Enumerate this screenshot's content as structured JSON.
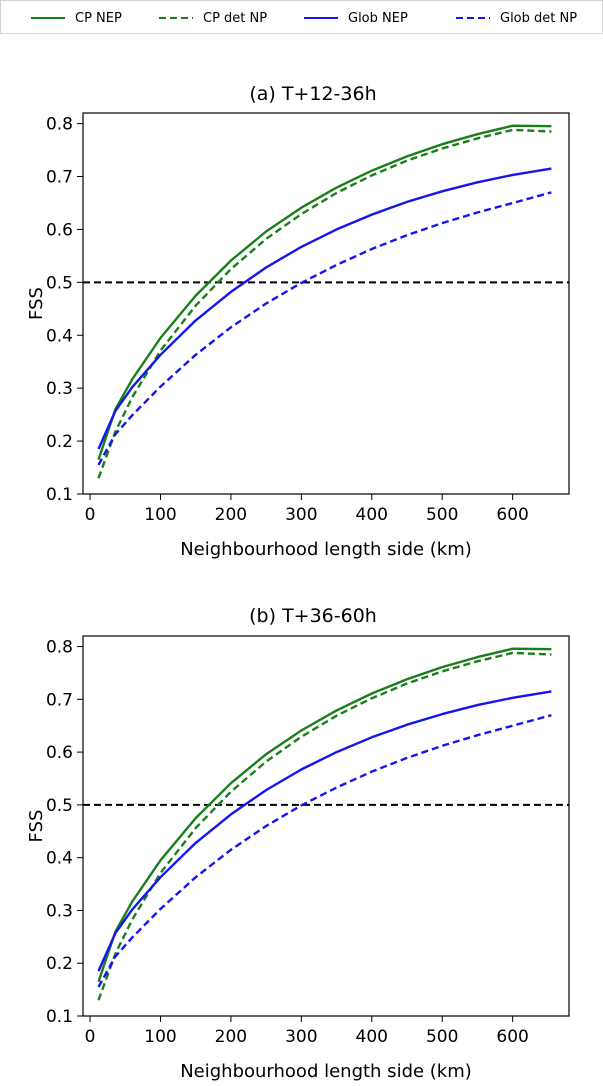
{
  "legend": {
    "entries": [
      {
        "label": "CP NEP",
        "color": "#1a7f1a",
        "dash": "solid"
      },
      {
        "label": "CP det NP",
        "color": "#1a7f1a",
        "dash": "dashed"
      },
      {
        "label": "Glob NEP",
        "color": "#1515ee",
        "dash": "solid"
      },
      {
        "label": "Glob det NP",
        "color": "#1515ee",
        "dash": "dashed"
      }
    ]
  },
  "chart_data": [
    {
      "type": "line",
      "title": "(a) T+12-36h",
      "xlabel": "Neighbourhood length side (km)",
      "ylabel": "FSS",
      "xlim": [
        -10,
        680
      ],
      "ylim": [
        0.1,
        0.82
      ],
      "xticks": [
        0,
        100,
        200,
        300,
        400,
        500,
        600
      ],
      "yticks": [
        0.1,
        0.2,
        0.3,
        0.4,
        0.5,
        0.6,
        0.7,
        0.8
      ],
      "reference_line": {
        "y": 0.5,
        "color": "#000000",
        "dash": "dashed"
      },
      "grid": false,
      "x": [
        12,
        36,
        60,
        100,
        150,
        200,
        250,
        300,
        350,
        400,
        450,
        500,
        550,
        600,
        655
      ],
      "series": [
        {
          "name": "CP NEP",
          "color": "#1a7f1a",
          "dash": "solid",
          "values": [
            0.165,
            0.26,
            0.317,
            0.395,
            0.475,
            0.541,
            0.596,
            0.641,
            0.679,
            0.711,
            0.738,
            0.761,
            0.78,
            0.796,
            0.795
          ]
        },
        {
          "name": "CP det NP",
          "color": "#1a7f1a",
          "dash": "dashed",
          "values": [
            0.13,
            0.218,
            0.283,
            0.371,
            0.456,
            0.525,
            0.582,
            0.629,
            0.669,
            0.702,
            0.73,
            0.753,
            0.772,
            0.788,
            0.785
          ]
        },
        {
          "name": "Glob NEP",
          "color": "#1515ee",
          "dash": "solid",
          "values": [
            0.185,
            0.257,
            0.302,
            0.363,
            0.428,
            0.482,
            0.528,
            0.567,
            0.6,
            0.628,
            0.652,
            0.672,
            0.689,
            0.703,
            0.715
          ]
        },
        {
          "name": "Glob det NP",
          "color": "#1515ee",
          "dash": "dashed",
          "values": [
            0.155,
            0.213,
            0.249,
            0.303,
            0.363,
            0.415,
            0.46,
            0.499,
            0.533,
            0.563,
            0.589,
            0.612,
            0.632,
            0.65,
            0.67
          ]
        }
      ]
    },
    {
      "type": "line",
      "title": "(b) T+36-60h",
      "xlabel": "Neighbourhood length side (km)",
      "ylabel": "FSS",
      "xlim": [
        -10,
        680
      ],
      "ylim": [
        0.1,
        0.82
      ],
      "xticks": [
        0,
        100,
        200,
        300,
        400,
        500,
        600
      ],
      "yticks": [
        0.1,
        0.2,
        0.3,
        0.4,
        0.5,
        0.6,
        0.7,
        0.8
      ],
      "reference_line": {
        "y": 0.5,
        "color": "#000000",
        "dash": "dashed"
      },
      "grid": false,
      "x": [
        12,
        36,
        60,
        100,
        150,
        200,
        250,
        300,
        350,
        400,
        450,
        500,
        550,
        600,
        655
      ],
      "series": [
        {
          "name": "CP NEP",
          "color": "#1a7f1a",
          "dash": "solid",
          "values": [
            0.165,
            0.26,
            0.317,
            0.395,
            0.475,
            0.541,
            0.596,
            0.641,
            0.679,
            0.711,
            0.738,
            0.761,
            0.78,
            0.796,
            0.795
          ]
        },
        {
          "name": "CP det NP",
          "color": "#1a7f1a",
          "dash": "dashed",
          "values": [
            0.13,
            0.218,
            0.283,
            0.371,
            0.456,
            0.525,
            0.582,
            0.629,
            0.669,
            0.702,
            0.73,
            0.753,
            0.772,
            0.788,
            0.785
          ]
        },
        {
          "name": "Glob NEP",
          "color": "#1515ee",
          "dash": "solid",
          "values": [
            0.185,
            0.257,
            0.302,
            0.363,
            0.428,
            0.482,
            0.528,
            0.567,
            0.6,
            0.628,
            0.652,
            0.672,
            0.689,
            0.703,
            0.715
          ]
        },
        {
          "name": "Glob det NP",
          "color": "#1515ee",
          "dash": "dashed",
          "values": [
            0.155,
            0.213,
            0.249,
            0.303,
            0.363,
            0.415,
            0.46,
            0.499,
            0.533,
            0.563,
            0.589,
            0.612,
            0.632,
            0.65,
            0.67
          ]
        }
      ]
    }
  ]
}
